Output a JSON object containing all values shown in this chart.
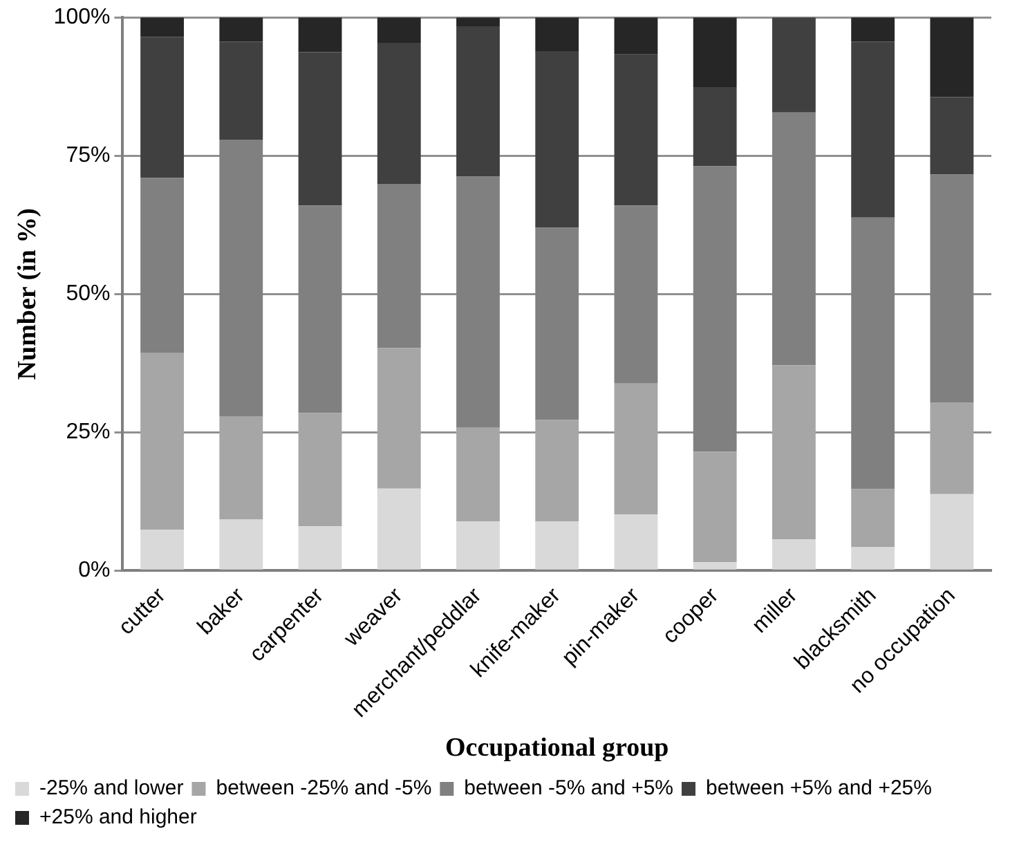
{
  "chart_data": {
    "type": "bar",
    "stacked": true,
    "xlabel": "Occupational group",
    "ylabel": "Number (in %)",
    "categories": [
      "cutter",
      "baker",
      "carpenter",
      "weaver",
      "merchant/peddlar",
      "knife-maker",
      "pin-maker",
      "cooper",
      "miller",
      "blacksmith",
      "no occupation"
    ],
    "series": [
      {
        "name": "-25% and lower",
        "color": "#d9d9d9",
        "values": [
          7.4,
          9.2,
          8.0,
          14.8,
          8.9,
          8.9,
          10.1,
          1.5,
          5.6,
          4.2,
          13.8
        ]
      },
      {
        "name": "between -25% and -5%",
        "color": "#a6a6a6",
        "values": [
          31.9,
          18.7,
          20.5,
          25.4,
          16.9,
          18.3,
          23.7,
          20.0,
          31.5,
          10.5,
          16.6
        ]
      },
      {
        "name": "between -5% and +5%",
        "color": "#808080",
        "values": [
          31.7,
          50.0,
          37.5,
          29.7,
          45.4,
          34.8,
          32.2,
          51.6,
          45.7,
          49.1,
          41.2
        ]
      },
      {
        "name": "between +5% and +25%",
        "color": "#404040",
        "values": [
          25.5,
          17.7,
          27.7,
          25.5,
          27.2,
          31.9,
          27.3,
          14.3,
          17.2,
          31.8,
          14.0
        ]
      },
      {
        "name": "+25% and higher",
        "color": "#262626",
        "values": [
          3.5,
          4.4,
          6.3,
          4.6,
          1.6,
          6.1,
          6.7,
          12.6,
          0,
          4.4,
          14.4
        ]
      }
    ],
    "ylim": [
      0,
      100
    ],
    "yticks": [
      {
        "value": 0,
        "label": "0%"
      },
      {
        "value": 25,
        "label": "25%"
      },
      {
        "value": 50,
        "label": "50%"
      },
      {
        "value": 75,
        "label": "75%"
      },
      {
        "value": 100,
        "label": "100%"
      }
    ],
    "grid": "y",
    "legend": "bottom"
  }
}
